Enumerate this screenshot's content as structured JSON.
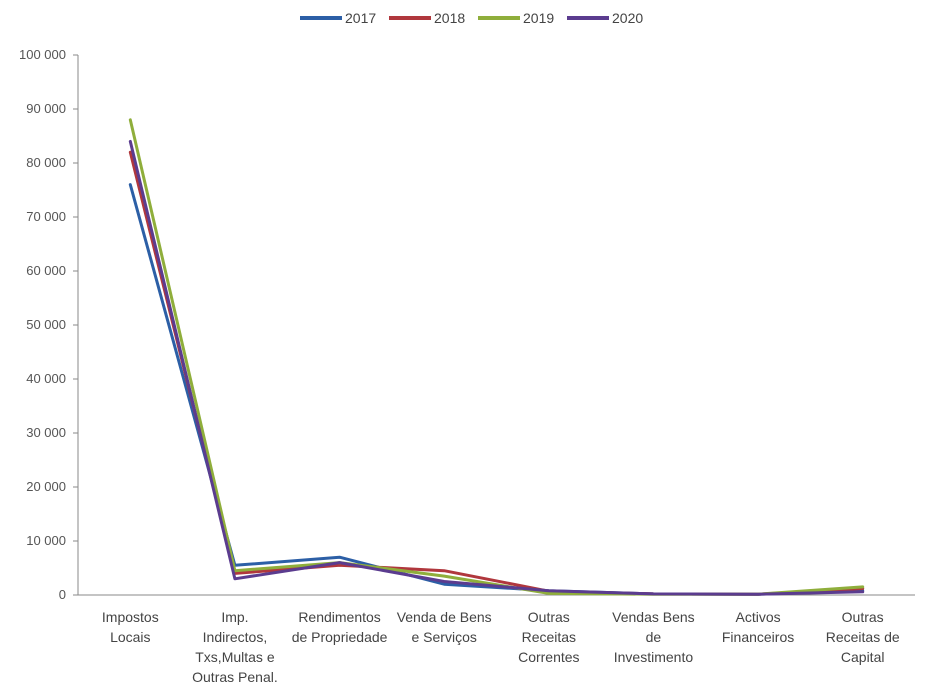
{
  "chart_data": {
    "type": "line",
    "categories": [
      [
        "Impostos",
        "Locais"
      ],
      [
        "Imp.",
        "Indirectos,",
        "Txs,Multas e",
        "Outras Penal."
      ],
      [
        "Rendimentos",
        "de Propriedade"
      ],
      [
        "Venda de Bens",
        "e Serviços"
      ],
      [
        "Outras",
        "Receitas",
        "Correntes"
      ],
      [
        "Vendas Bens",
        "de",
        "Investimento"
      ],
      [
        "Activos",
        "Financeiros"
      ],
      [
        "Outras",
        "Receitas de",
        "Capital"
      ]
    ],
    "series": [
      {
        "name": "2017",
        "color": "#2c5fa6",
        "values": [
          76000,
          5500,
          7000,
          2000,
          800,
          200,
          150,
          800
        ]
      },
      {
        "name": "2018",
        "color": "#b0373d",
        "values": [
          82000,
          4000,
          5500,
          4500,
          700,
          200,
          150,
          1200
        ]
      },
      {
        "name": "2019",
        "color": "#8fae3b",
        "values": [
          88000,
          4500,
          6000,
          3500,
          300,
          150,
          150,
          1500
        ]
      },
      {
        "name": "2020",
        "color": "#5b3c8f",
        "values": [
          84000,
          3000,
          6000,
          2500,
          800,
          200,
          150,
          600
        ]
      }
    ],
    "yticks": [
      "100 000",
      "90 000",
      "80 000",
      "70 000",
      "60 000",
      "50 000",
      "40 000",
      "30 000",
      "20 000",
      "10 000",
      "0"
    ],
    "ylim": [
      0,
      100000
    ],
    "legend_position": "top",
    "grid": false
  }
}
